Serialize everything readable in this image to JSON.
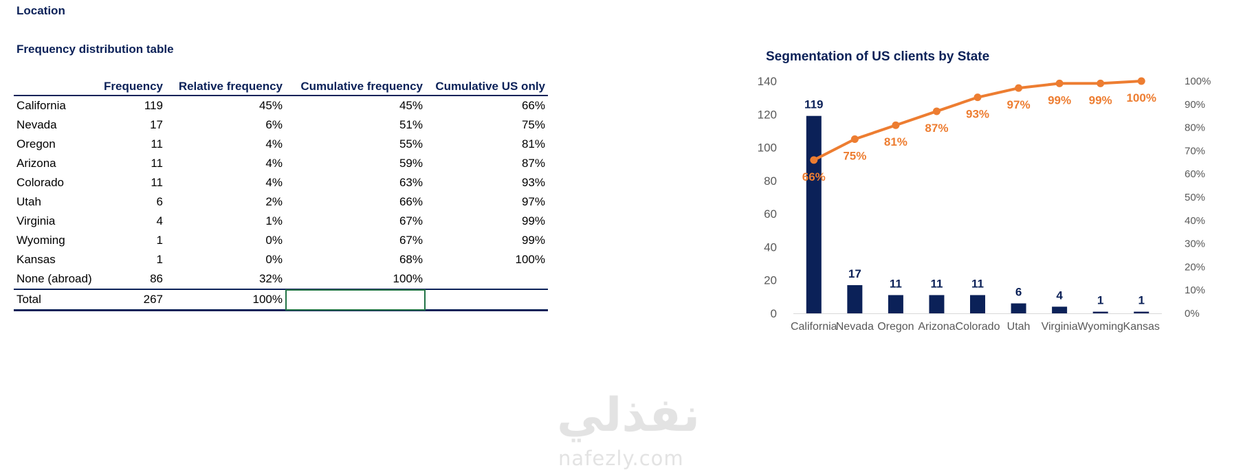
{
  "sheet_title": "Location",
  "table_title": "Frequency distribution table",
  "table": {
    "headers": [
      "",
      "Frequency",
      "Relative frequency",
      "Cumulative frequency",
      "Cumulative US only"
    ],
    "rows": [
      [
        "California",
        "119",
        "45%",
        "45%",
        "66%"
      ],
      [
        "Nevada",
        "17",
        "6%",
        "51%",
        "75%"
      ],
      [
        "Oregon",
        "11",
        "4%",
        "55%",
        "81%"
      ],
      [
        "Arizona",
        "11",
        "4%",
        "59%",
        "87%"
      ],
      [
        "Colorado",
        "11",
        "4%",
        "63%",
        "93%"
      ],
      [
        "Utah",
        "6",
        "2%",
        "66%",
        "97%"
      ],
      [
        "Virginia",
        "4",
        "1%",
        "67%",
        "99%"
      ],
      [
        "Wyoming",
        "1",
        "0%",
        "67%",
        "99%"
      ],
      [
        "Kansas",
        "1",
        "0%",
        "68%",
        "100%"
      ],
      [
        "None (abroad)",
        "86",
        "32%",
        "100%",
        ""
      ]
    ],
    "total": [
      "Total",
      "267",
      "100%",
      "",
      ""
    ]
  },
  "chart_data": {
    "type": "bar",
    "title": "Segmentation of US clients by State",
    "categories": [
      "California",
      "Nevada",
      "Oregon",
      "Arizona",
      "Colorado",
      "Utah",
      "Virginia",
      "Wyoming",
      "Kansas"
    ],
    "series": [
      {
        "type": "bar",
        "axis": "left",
        "values": [
          119,
          17,
          11,
          11,
          11,
          6,
          4,
          1,
          1
        ],
        "color": "#0b2158"
      },
      {
        "type": "line",
        "axis": "right",
        "values": [
          66,
          75,
          81,
          87,
          93,
          97,
          99,
          99,
          100
        ],
        "color": "#ed7d31"
      }
    ],
    "y_left": {
      "min": 0,
      "max": 140,
      "ticks": [
        0,
        20,
        40,
        60,
        80,
        100,
        120,
        140
      ]
    },
    "y_right": {
      "min": 0,
      "max": 100,
      "ticks": [
        "0%",
        "10%",
        "20%",
        "30%",
        "40%",
        "50%",
        "60%",
        "70%",
        "80%",
        "90%",
        "100%"
      ]
    },
    "grid": false,
    "legend": "none"
  },
  "watermark": {
    "arabic": "نفذلي",
    "latin": "nafezly.com"
  }
}
